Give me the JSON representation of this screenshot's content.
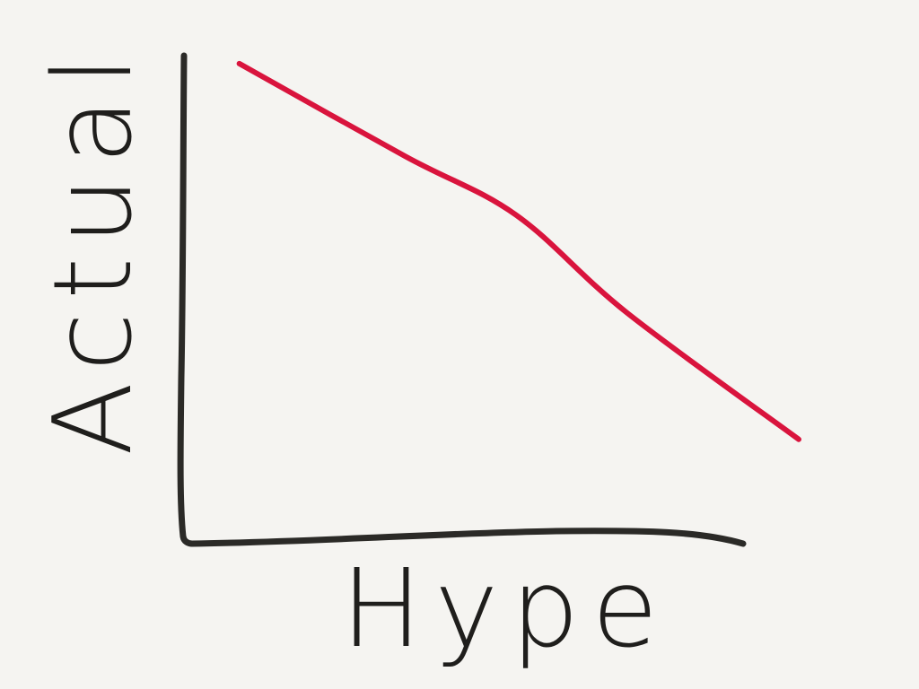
{
  "chart_data": {
    "type": "line",
    "title": "",
    "xlabel": "Hype",
    "ylabel": "Actual",
    "grid": false,
    "legend": "none",
    "xlim": [
      0,
      1
    ],
    "ylim": [
      0,
      1
    ],
    "series": [
      {
        "x": [
          0.09,
          0.36,
          0.54,
          0.72,
          1.0
        ],
        "y": [
          0.98,
          0.79,
          0.67,
          0.47,
          0.21
        ]
      }
    ]
  },
  "colors": {
    "background": "#f5f4f1",
    "axis": "#2b2a27",
    "series": "#d9143d",
    "label": "#1f1e1c"
  }
}
